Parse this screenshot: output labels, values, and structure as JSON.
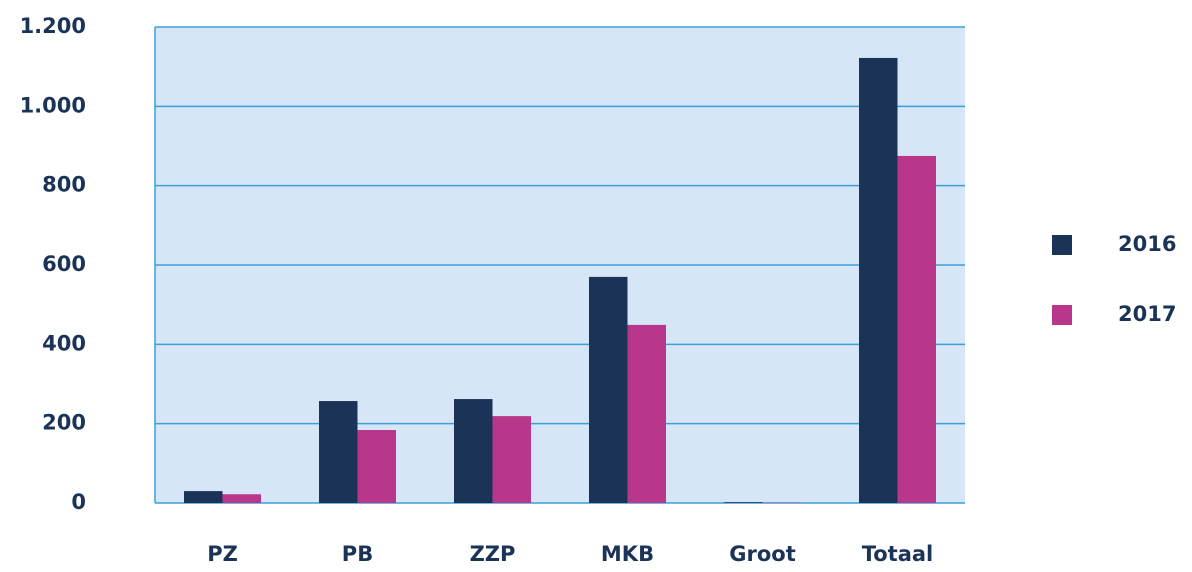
{
  "chart_data": {
    "type": "bar",
    "categories": [
      "PZ",
      "PB",
      "ZZP",
      "MKB",
      "Groot",
      "Totaal"
    ],
    "series": [
      {
        "name": "2016",
        "color": "#1c3358",
        "values": [
          30,
          257,
          262,
          570,
          2,
          1122
        ]
      },
      {
        "name": "2017",
        "color": "#b8378a",
        "values": [
          22,
          184,
          219,
          449,
          1,
          875
        ]
      }
    ],
    "ylim": [
      0,
      1200
    ],
    "yticks": [
      0,
      200,
      400,
      600,
      800,
      {
        "value": 1000,
        "label": "1.000"
      },
      {
        "value": 1200,
        "label": "1.200"
      }
    ],
    "grid": true,
    "legend": "right"
  }
}
